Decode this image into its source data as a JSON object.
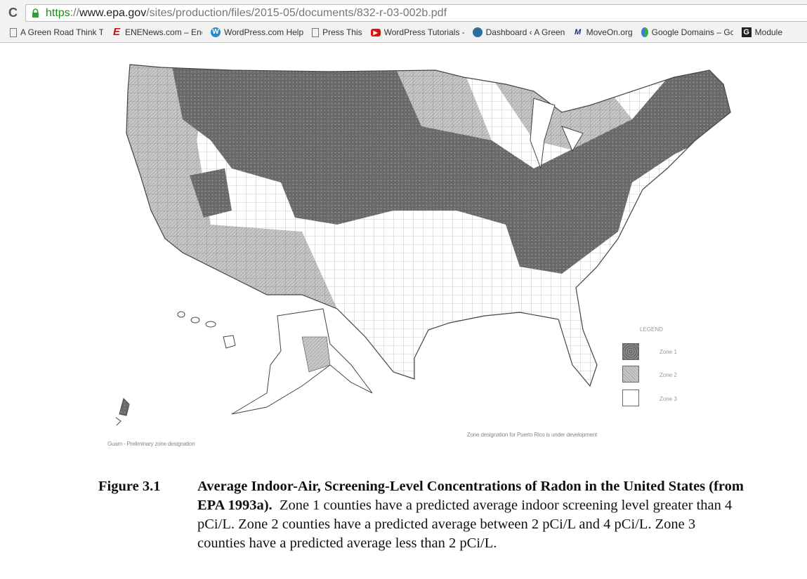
{
  "browser": {
    "url_scheme": "https",
    "url_sep": "://",
    "url_host": "www.epa.gov",
    "url_path": "/sites/production/files/2015-05/documents/832-r-03-002b.pdf",
    "bookmarks": [
      {
        "label": "A Green Road Think T",
        "icon": "page-icon"
      },
      {
        "label": "ENENews.com – Energ",
        "icon": "enenews-icon"
      },
      {
        "label": "WordPress.com Help",
        "icon": "wordpress-icon"
      },
      {
        "label": "Press This",
        "icon": "page-icon"
      },
      {
        "label": "WordPress Tutorials -",
        "icon": "youtube-icon"
      },
      {
        "label": "Dashboard ‹ A Green",
        "icon": "globe-icon"
      },
      {
        "label": "MoveOn.org",
        "icon": "moveon-icon"
      },
      {
        "label": "Google Domains – Go",
        "icon": "google-domains-icon"
      },
      {
        "label": "Module",
        "icon": "g-icon"
      }
    ]
  },
  "map": {
    "legend_title": "LEGEND",
    "legend": [
      {
        "label": "Zone 1",
        "color": "#6e6e6e"
      },
      {
        "label": "Zone 2",
        "color": "#c4c4c4"
      },
      {
        "label": "Zone 3",
        "color": "#ffffff"
      }
    ],
    "guam_note": "Guam - Preliminary zone designation",
    "puerto_rico_note": "Zone designation for Puerto Rico is under development"
  },
  "caption": {
    "figure_number": "Figure 3.1",
    "title": "Average Indoor-Air, Screening-Level Concentrations of Radon in the United States (from EPA 1993a).",
    "body": "Zone 1 counties have a predicted average indoor screening level greater than 4 pCi/L.  Zone 2 counties have a predicted average between 2 pCi/L and 4 pCi/L.  Zone 3 counties have a predicted average less than 2 pCi/L."
  }
}
